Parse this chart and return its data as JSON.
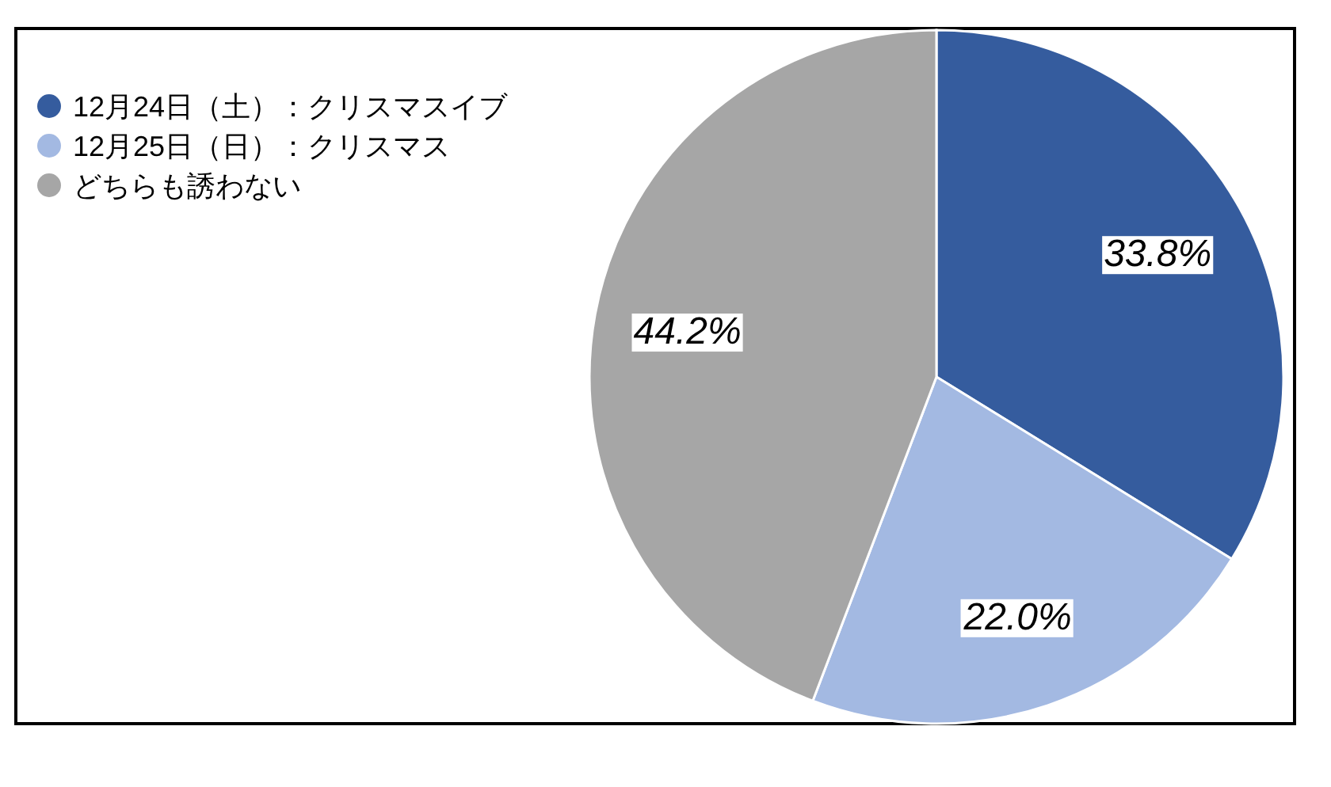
{
  "chart_data": {
    "type": "pie",
    "categories": [
      "12月24日（土）：クリスマスイブ",
      "12月25日（日）：クリスマス",
      "どちらも誘わない"
    ],
    "values": [
      33.8,
      22.0,
      44.2
    ],
    "colors": [
      "#355c9e",
      "#a3b9e2",
      "#a6a6a6"
    ],
    "value_labels": [
      "33.8%",
      "22.0%",
      "44.2%"
    ],
    "legend": "top left"
  }
}
